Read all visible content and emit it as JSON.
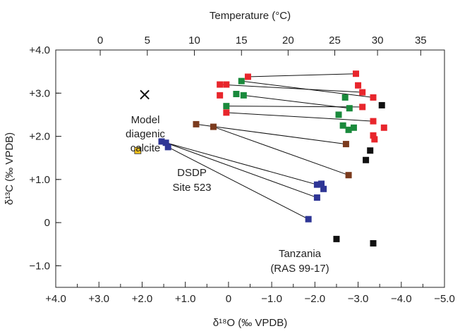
{
  "chart_data": {
    "type": "scatter",
    "xlabel": "δ¹⁸O (‰ VPDB)",
    "ylabel": "δ¹³C (‰ VPDB)",
    "top_axis_label": "Temperature (°C)",
    "x_reversed": true,
    "xlim": [
      4.0,
      -5.0
    ],
    "ylim": [
      -1.5,
      4.0
    ],
    "x_ticks": [
      {
        "value": 4.0,
        "label": "+4.0"
      },
      {
        "value": 3.0,
        "label": "+3.0"
      },
      {
        "value": 2.0,
        "label": "+2.0"
      },
      {
        "value": 1.0,
        "label": "+1.0"
      },
      {
        "value": 0.0,
        "label": "0"
      },
      {
        "value": -1.0,
        "label": "−1.0"
      },
      {
        "value": -2.0,
        "label": "−2.0"
      },
      {
        "value": -3.0,
        "label": "−3.0"
      },
      {
        "value": -4.0,
        "label": "−4.0"
      },
      {
        "value": -5.0,
        "label": "−5.0"
      }
    ],
    "y_ticks": [
      {
        "value": 4.0,
        "label": "+4.0"
      },
      {
        "value": 3.0,
        "label": "+3.0"
      },
      {
        "value": 2.0,
        "label": "+2.0"
      },
      {
        "value": 1.0,
        "label": "+1.0"
      },
      {
        "value": 0.0,
        "label": "0"
      },
      {
        "value": -1.0,
        "label": "−1.0"
      }
    ],
    "top_ticks": [
      {
        "value": 2.97,
        "label": "0"
      },
      {
        "value": 1.88,
        "label": "5"
      },
      {
        "value": 0.79,
        "label": "10"
      },
      {
        "value": -0.3,
        "label": "15"
      },
      {
        "value": -1.38,
        "label": "20"
      },
      {
        "value": -2.46,
        "label": "25"
      },
      {
        "value": -3.45,
        "label": "30"
      },
      {
        "value": -4.45,
        "label": "35"
      }
    ],
    "colors": {
      "red": "#e8262c",
      "green": "#1a8a3c",
      "brown": "#7b3b1e",
      "blue": "#2e3595",
      "black": "#111111",
      "yellow": "#f5c21b",
      "line": "#111111"
    },
    "series": [
      {
        "color": "red",
        "points": [
          [
            -0.45,
            3.38
          ],
          [
            -2.95,
            3.45
          ],
          [
            0.2,
            3.2
          ],
          [
            0.05,
            3.2
          ],
          [
            -3.0,
            3.18
          ],
          [
            -3.1,
            3.02
          ],
          [
            0.2,
            2.95
          ],
          [
            -3.35,
            2.9
          ],
          [
            0.05,
            2.55
          ],
          [
            -3.1,
            2.68
          ],
          [
            -3.35,
            2.35
          ],
          [
            -3.6,
            2.2
          ],
          [
            -3.35,
            2.02
          ],
          [
            -3.38,
            1.93
          ]
        ]
      },
      {
        "color": "green",
        "points": [
          [
            -0.3,
            3.28
          ],
          [
            -0.35,
            2.95
          ],
          [
            -0.18,
            2.98
          ],
          [
            -2.7,
            2.9
          ],
          [
            0.05,
            2.7
          ],
          [
            -2.8,
            2.65
          ],
          [
            -2.55,
            2.5
          ],
          [
            -2.65,
            2.25
          ],
          [
            -2.78,
            2.15
          ],
          [
            -2.9,
            2.2
          ]
        ]
      },
      {
        "color": "brown",
        "points": [
          [
            0.75,
            2.28
          ],
          [
            0.35,
            2.22
          ],
          [
            -2.72,
            1.82
          ],
          [
            -2.78,
            1.1
          ]
        ]
      },
      {
        "color": "blue",
        "points": [
          [
            1.55,
            1.88
          ],
          [
            1.45,
            1.85
          ],
          [
            1.4,
            1.75
          ],
          [
            -2.05,
            0.88
          ],
          [
            -2.15,
            0.9
          ],
          [
            -2.2,
            0.78
          ],
          [
            -2.05,
            0.58
          ],
          [
            -1.85,
            0.08
          ]
        ]
      },
      {
        "color": "black",
        "points": [
          [
            -3.55,
            2.72
          ],
          [
            -3.28,
            1.67
          ],
          [
            -3.18,
            1.45
          ],
          [
            -2.5,
            -0.38
          ],
          [
            -3.35,
            -0.48
          ]
        ]
      },
      {
        "color": "yellow",
        "points": [
          [
            2.1,
            1.67
          ]
        ]
      }
    ],
    "connector_lines": [
      [
        [
          -0.45,
          3.38
        ],
        [
          -2.95,
          3.45
        ]
      ],
      [
        [
          -0.3,
          3.28
        ],
        [
          -3.35,
          2.9
        ]
      ],
      [
        [
          0.2,
          3.2
        ],
        [
          -3.1,
          3.02
        ]
      ],
      [
        [
          -0.35,
          2.95
        ],
        [
          -2.8,
          2.65
        ]
      ],
      [
        [
          0.05,
          2.7
        ],
        [
          -3.1,
          2.68
        ]
      ],
      [
        [
          0.05,
          2.55
        ],
        [
          -3.35,
          2.35
        ]
      ],
      [
        [
          0.75,
          2.28
        ],
        [
          -2.72,
          1.82
        ]
      ],
      [
        [
          0.35,
          2.22
        ],
        [
          -2.78,
          1.1
        ]
      ],
      [
        [
          1.55,
          1.88
        ],
        [
          -2.05,
          0.88
        ]
      ],
      [
        [
          1.45,
          1.85
        ],
        [
          -2.05,
          0.58
        ]
      ],
      [
        [
          1.4,
          1.75
        ],
        [
          -1.85,
          0.08
        ]
      ]
    ],
    "model_marker": {
      "x": 2.05,
      "y": 3.0,
      "symbol": "×"
    },
    "annotations": {
      "model": [
        "Model",
        "diagenic",
        "calcite"
      ],
      "dsdp": [
        "DSDP",
        "Site 523"
      ],
      "tanzania": [
        "Tanzania",
        "(RAS 99-17)"
      ]
    }
  }
}
